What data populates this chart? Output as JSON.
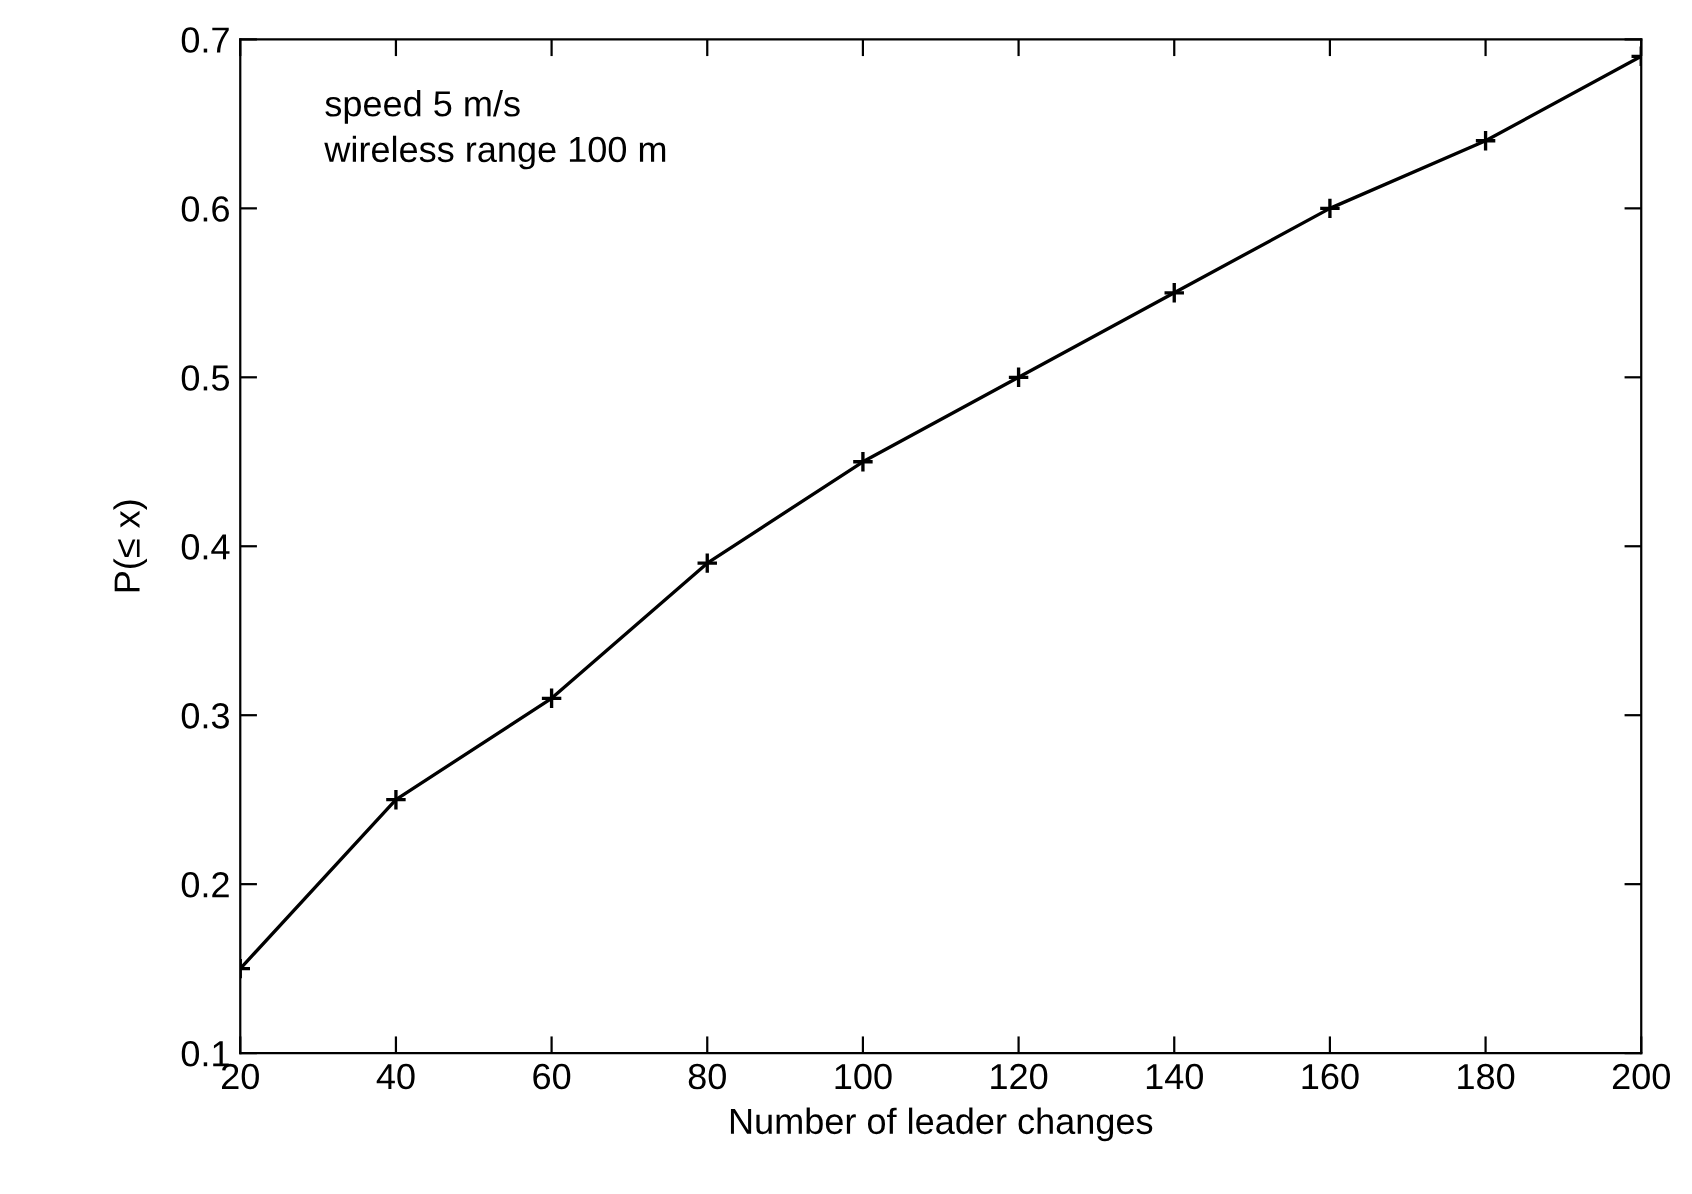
{
  "chart_data": {
    "type": "line",
    "xlabel": "Number of leader changes",
    "ylabel": "P(≤ x)",
    "x": [
      20,
      40,
      60,
      80,
      100,
      120,
      140,
      160,
      180,
      200
    ],
    "series": [
      {
        "color": "#000000",
        "values": [
          0.15,
          0.25,
          0.31,
          0.39,
          0.45,
          0.5,
          0.55,
          0.6,
          0.64,
          0.69
        ]
      }
    ],
    "xlim": [
      20,
      200
    ],
    "xticks": [
      20,
      40,
      60,
      80,
      100,
      120,
      140,
      160,
      180,
      200
    ],
    "ylim": [
      0.1,
      0.7
    ],
    "yticks": [
      0.1,
      0.2,
      0.3,
      0.4,
      0.5,
      0.6,
      0.7
    ],
    "annotations": [
      "speed 5 m/s",
      "wireless range 100 m"
    ],
    "marker": "cross",
    "line_style": "solid"
  }
}
